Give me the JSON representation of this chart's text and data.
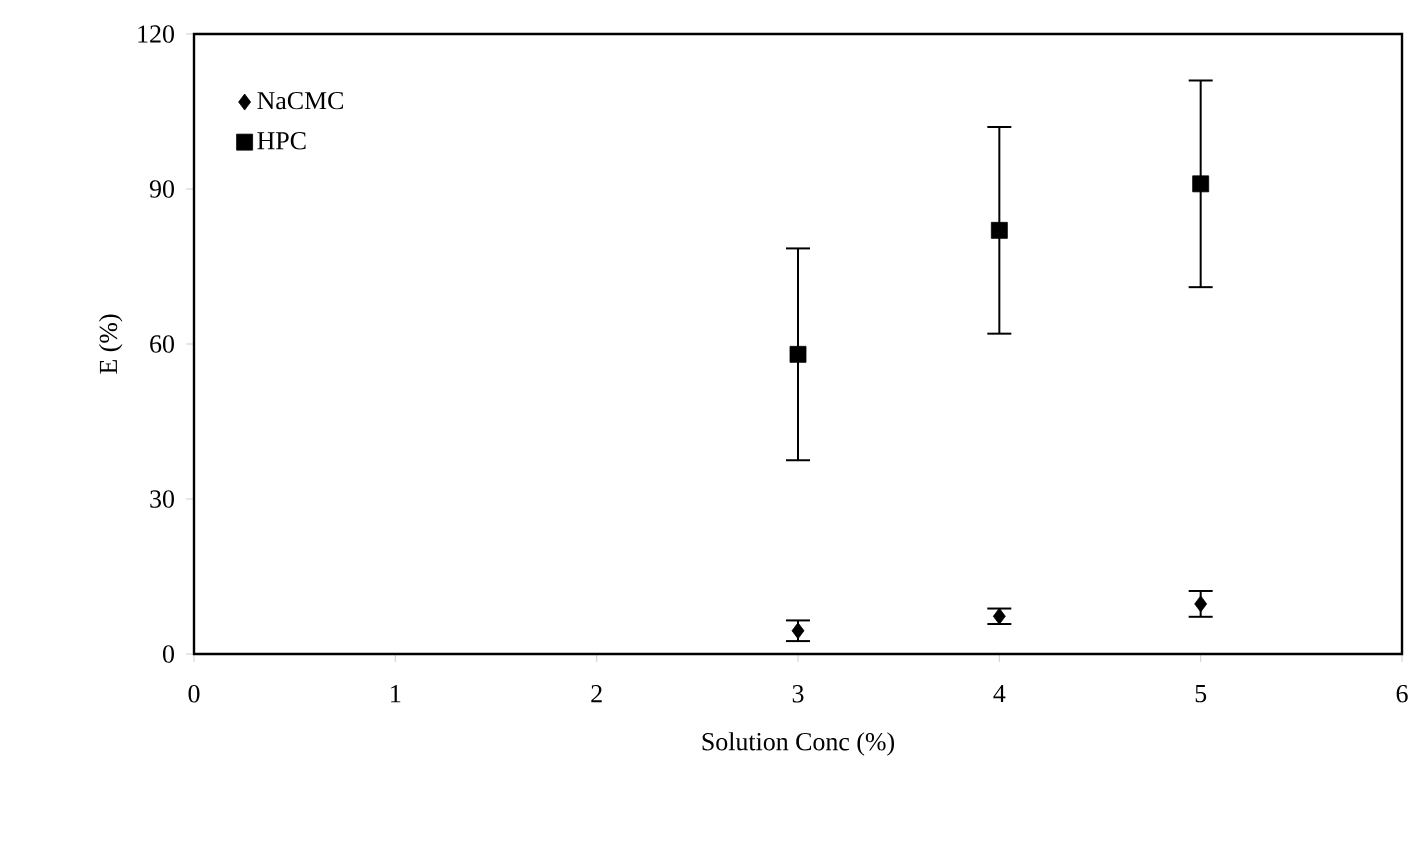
{
  "chart_data": {
    "type": "scatter",
    "xlabel": "Solution Conc (%)",
    "ylabel": "E (%)",
    "x": [
      3,
      4,
      5
    ],
    "series": [
      {
        "name": "NaCMC",
        "color": "#000000",
        "marker": "diamond",
        "values": [
          4.5,
          7.3,
          9.7
        ],
        "errors": [
          2,
          1.5,
          2.5
        ]
      },
      {
        "name": "HPC",
        "color": "#000000",
        "marker": "square",
        "values": [
          58,
          82,
          91
        ],
        "errors": [
          20.5,
          20,
          20
        ]
      }
    ],
    "xlim": [
      0,
      6
    ],
    "xticks": [
      0,
      1,
      2,
      3,
      4,
      5,
      6
    ],
    "ylim": [
      0,
      120
    ],
    "yticks": [
      0,
      30,
      60,
      90,
      120
    ],
    "grid": false,
    "legend": "top left"
  }
}
